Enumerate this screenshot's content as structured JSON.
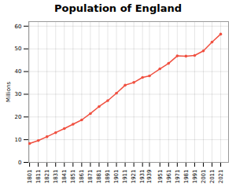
{
  "chart_data": {
    "type": "line",
    "title": "Population of England",
    "ylabel": "Millions",
    "x": [
      1801,
      1811,
      1821,
      1831,
      1841,
      1851,
      1861,
      1871,
      1881,
      1891,
      1901,
      1911,
      1921,
      1931,
      1939,
      1951,
      1961,
      1971,
      1981,
      1991,
      2001,
      2011,
      2021
    ],
    "values": [
      8.3,
      9.6,
      11.3,
      13.1,
      14.9,
      16.8,
      18.7,
      21.5,
      24.6,
      27.2,
      30.5,
      34.0,
      35.2,
      37.4,
      38.1,
      41.2,
      43.6,
      46.9,
      46.8,
      47.1,
      49.1,
      53.0,
      56.5
    ],
    "color": "#f05040",
    "marker": "circle",
    "xlim": [
      1800,
      2030
    ],
    "xticks": [
      1801,
      1811,
      1821,
      1831,
      1841,
      1851,
      1861,
      1871,
      1881,
      1891,
      1901,
      1911,
      1921,
      1931,
      1939,
      1951,
      1961,
      1971,
      1981,
      1991,
      2001,
      2011,
      2021
    ],
    "ylim": [
      0,
      62
    ],
    "yticks": [
      0,
      10,
      20,
      30,
      40,
      50,
      60
    ],
    "grid": true
  }
}
